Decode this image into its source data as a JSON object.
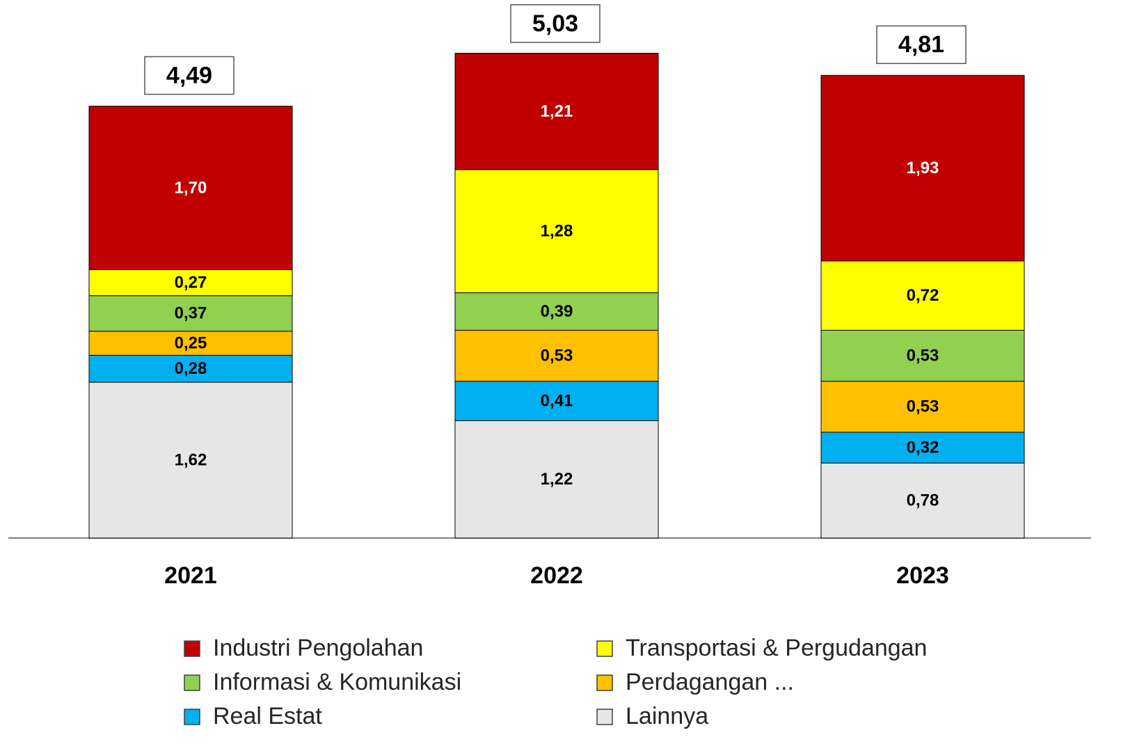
{
  "chart_data": {
    "type": "stacked_bar",
    "categories": [
      "2021",
      "2022",
      "2023"
    ],
    "series": [
      {
        "name": "Industri Pengolahan",
        "color": "#c00000",
        "values": [
          1.7,
          1.21,
          1.93
        ],
        "value_labels": [
          "1,70",
          "1,21",
          "1,93"
        ]
      },
      {
        "name": "Transportasi & Pergudangan",
        "color": "#ffff00",
        "values": [
          0.27,
          1.28,
          0.72
        ],
        "value_labels": [
          "0,27",
          "1,28",
          "0,72"
        ]
      },
      {
        "name": "Informasi & Komunikasi",
        "color": "#92d050",
        "values": [
          0.37,
          0.39,
          0.53
        ],
        "value_labels": [
          "0,37",
          "0,39",
          "0,53"
        ]
      },
      {
        "name": "Perdagangan ...",
        "color": "#ffc000",
        "values": [
          0.25,
          0.53,
          0.53
        ],
        "value_labels": [
          "0,25",
          "0,53",
          "0,53"
        ]
      },
      {
        "name": "Real Estat",
        "color": "#00b0f0",
        "values": [
          0.28,
          0.41,
          0.32
        ],
        "value_labels": [
          "0,28",
          "0,41",
          "0,32"
        ]
      },
      {
        "name": "Lainnya",
        "color": "#e7e6e6",
        "values": [
          1.62,
          1.22,
          0.78
        ],
        "value_labels": [
          "1,62",
          "1,22",
          "0,78"
        ]
      }
    ],
    "totals": [
      4.49,
      5.03,
      4.81
    ],
    "total_labels": [
      "4,49",
      "5,03",
      "4,81"
    ]
  }
}
